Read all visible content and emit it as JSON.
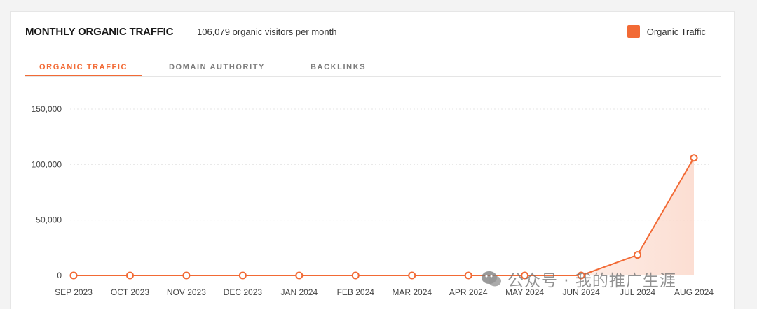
{
  "header": {
    "title": "MONTHLY ORGANIC TRAFFIC",
    "subtitle": "106,079 organic visitors per month"
  },
  "legend": {
    "label": "Organic Traffic",
    "color": "#f26a35"
  },
  "tabs": [
    {
      "label": "ORGANIC TRAFFIC",
      "active": true
    },
    {
      "label": "DOMAIN AUTHORITY",
      "active": false
    },
    {
      "label": "BACKLINKS",
      "active": false
    }
  ],
  "colors": {
    "accent": "#f26a35",
    "grid": "#e6e6e6"
  },
  "chart_data": {
    "type": "area",
    "categories": [
      "SEP 2023",
      "OCT 2023",
      "NOV 2023",
      "DEC 2023",
      "JAN 2024",
      "FEB 2024",
      "MAR 2024",
      "APR 2024",
      "MAY 2024",
      "JUN 2024",
      "JUL 2024",
      "AUG 2024"
    ],
    "series": [
      {
        "name": "Organic Traffic",
        "values": [
          0,
          0,
          0,
          0,
          0,
          0,
          0,
          0,
          0,
          0,
          18500,
          106079
        ]
      }
    ],
    "y_ticks": [
      0,
      50000,
      100000,
      150000
    ],
    "y_tick_labels": [
      "0",
      "50,000",
      "100,000",
      "150,000"
    ],
    "ylim": [
      0,
      150000
    ],
    "grid": true,
    "legend_position": "top-right"
  },
  "watermark": {
    "text": "公众号 · 我的推广生涯",
    "icon": "wechat-icon"
  }
}
